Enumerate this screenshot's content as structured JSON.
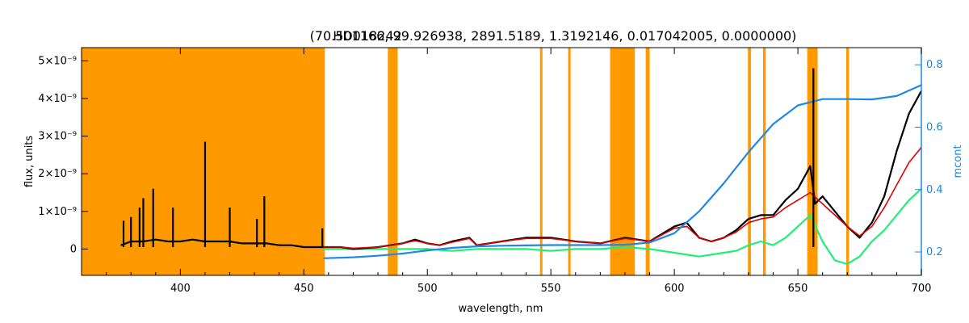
{
  "chart_data": {
    "type": "line",
    "title": "HD018242",
    "params": "(70.501166, 99.926938, 2891.5189, 1.3192146, 0.017042005, 0.0000000)",
    "xlabel": "wavelength, nm",
    "ylabel": "flux, units",
    "y2label": "mcont",
    "xlim": [
      360,
      700
    ],
    "ylim": [
      -7e-10,
      5.35e-09
    ],
    "y2lim": [
      0.125,
      0.855
    ],
    "x_ticks": [
      400,
      450,
      500,
      550,
      600,
      650,
      700
    ],
    "x_tick_labels": [
      "400",
      "450",
      "500",
      "550",
      "600",
      "650",
      "700"
    ],
    "y_ticks": [
      0,
      1e-09,
      2e-09,
      3e-09,
      4e-09,
      5e-09
    ],
    "y_tick_labels": [
      "0",
      "1×10⁻⁹",
      "2×10⁻⁹",
      "3×10⁻⁹",
      "4×10⁻⁹",
      "5×10⁻⁹"
    ],
    "y2_ticks": [
      0.2,
      0.4,
      0.6,
      0.8
    ],
    "y2_tick_labels": [
      "0.2",
      "0.4",
      "0.6",
      "0.8"
    ],
    "grid": false,
    "legend": "none",
    "colors": {
      "mask": "#ff9900",
      "observed": "#000000",
      "model": "#dd0000",
      "residual": "#22ee77",
      "continuum": "#1e88e5",
      "axis_right": "#1e88e5",
      "yellow": "#ffdd00"
    },
    "masked_regions": [
      [
        360,
        458.5
      ],
      [
        484,
        488
      ],
      [
        545.6,
        546.6
      ],
      [
        557,
        558
      ],
      [
        574,
        584
      ],
      [
        588.4,
        590
      ],
      [
        629.8,
        631
      ],
      [
        635.9,
        637
      ],
      [
        653.8,
        658
      ],
      [
        669.6,
        670.7
      ]
    ],
    "series": [
      {
        "key": "observed",
        "x": [
          376,
          380,
          385,
          390,
          395,
          400,
          405,
          410,
          415,
          420,
          425,
          430,
          435,
          440,
          445,
          450,
          455,
          458,
          465,
          470,
          480,
          490,
          495,
          500,
          505,
          510,
          517,
          520,
          530,
          540,
          550,
          560,
          570,
          580,
          590,
          600,
          605,
          610,
          615,
          620,
          625,
          630,
          635,
          640,
          645,
          650,
          655,
          657,
          660,
          665,
          670,
          675,
          680,
          685,
          690,
          695,
          700
        ],
        "y": [
          1e-10,
          2e-10,
          2e-10,
          2.5e-10,
          2e-10,
          2e-10,
          2.5e-10,
          2e-10,
          2e-10,
          2e-10,
          1.5e-10,
          1.5e-10,
          1.5e-10,
          1e-10,
          1e-10,
          5e-11,
          5e-11,
          5e-11,
          5e-11,
          0.0,
          5e-11,
          1.5e-10,
          2.5e-10,
          1.5e-10,
          1e-10,
          2e-10,
          3e-10,
          1e-10,
          2e-10,
          3e-10,
          3e-10,
          2e-10,
          1.5e-10,
          3e-10,
          2e-10,
          6e-10,
          7e-10,
          3e-10,
          2e-10,
          3e-10,
          5e-10,
          8e-10,
          9e-10,
          9e-10,
          1.3e-09,
          1.6e-09,
          2.2e-09,
          1.2e-09,
          1.4e-09,
          1e-09,
          6e-10,
          3e-10,
          7e-10,
          1.4e-09,
          2.6e-09,
          3.6e-09,
          4.2e-09
        ]
      },
      {
        "key": "model",
        "x": [
          458,
          465,
          470,
          480,
          490,
          495,
          500,
          505,
          510,
          517,
          520,
          530,
          540,
          550,
          560,
          570,
          580,
          590,
          600,
          605,
          610,
          615,
          620,
          625,
          630,
          635,
          640,
          645,
          650,
          655,
          660,
          665,
          670,
          675,
          680,
          685,
          690,
          695,
          700
        ],
        "y": [
          5e-11,
          5e-11,
          2e-11,
          5e-11,
          1.5e-10,
          2.2e-10,
          1.5e-10,
          1e-10,
          1.8e-10,
          2.8e-10,
          1e-10,
          2e-10,
          2.8e-10,
          2.8e-10,
          2e-10,
          1.5e-10,
          2.8e-10,
          2e-10,
          5.5e-10,
          6e-10,
          3e-10,
          2e-10,
          3e-10,
          4.5e-10,
          7e-10,
          8e-10,
          8.5e-10,
          1.1e-09,
          1.3e-09,
          1.5e-09,
          1.2e-09,
          9e-10,
          6e-10,
          3.5e-10,
          6e-10,
          1.1e-09,
          1.7e-09,
          2.3e-09,
          2.7e-09
        ]
      },
      {
        "key": "residual",
        "x": [
          458,
          470,
          480,
          490,
          500,
          510,
          520,
          530,
          540,
          550,
          560,
          570,
          580,
          590,
          600,
          610,
          620,
          625,
          630,
          635,
          640,
          645,
          650,
          655,
          660,
          665,
          670,
          675,
          680,
          685,
          690,
          695,
          700
        ],
        "y": [
          0.0,
          0.0,
          0.0,
          0.0,
          0.0,
          -5e-11,
          0.0,
          0.0,
          0.0,
          -5e-11,
          0.0,
          0.0,
          5e-11,
          0.0,
          -1e-10,
          -2e-10,
          -1e-10,
          -5e-11,
          1e-10,
          2e-10,
          1e-10,
          3e-10,
          6e-10,
          9e-10,
          2e-10,
          -3e-10,
          -4e-10,
          -2e-10,
          2e-10,
          5e-10,
          9e-10,
          1.3e-09,
          1.6e-09
        ]
      },
      {
        "key": "continuum",
        "axis": "right",
        "x": [
          458,
          470,
          480,
          490,
          500,
          510,
          520,
          530,
          540,
          550,
          560,
          570,
          580,
          590,
          600,
          610,
          620,
          630,
          640,
          650,
          660,
          670,
          680,
          690,
          700
        ],
        "y": [
          0.18,
          0.183,
          0.188,
          0.195,
          0.205,
          0.213,
          0.218,
          0.22,
          0.221,
          0.222,
          0.222,
          0.222,
          0.223,
          0.23,
          0.26,
          0.33,
          0.42,
          0.52,
          0.61,
          0.67,
          0.69,
          0.69,
          0.689,
          0.7,
          0.735
        ]
      }
    ],
    "emission_lines": [
      {
        "x": 377,
        "y": 7.5e-10
      },
      {
        "x": 380,
        "y": 8.5e-10
      },
      {
        "x": 383.5,
        "y": 1.1e-09
      },
      {
        "x": 385,
        "y": 1.35e-09
      },
      {
        "x": 389,
        "y": 1.6e-09
      },
      {
        "x": 397,
        "y": 1.1e-09
      },
      {
        "x": 410,
        "y": 2.85e-09
      },
      {
        "x": 420,
        "y": 1.1e-09
      },
      {
        "x": 431,
        "y": 8e-10
      },
      {
        "x": 434,
        "y": 1.4e-09
      },
      {
        "x": 457.5,
        "y": 5.5e-10
      },
      {
        "x": 656.3,
        "y": 4.8e-09
      }
    ]
  }
}
